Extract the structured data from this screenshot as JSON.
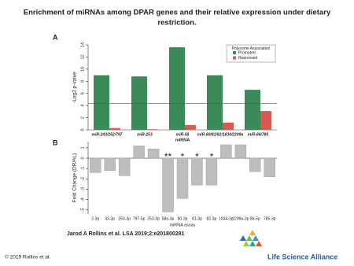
{
  "title_lines": [
    "Enrichment of miRNAs among DPAR genes and their relative expression under dietary",
    "restriction."
  ],
  "citation": "Jarod A Rollins et al. LSA 2019;2:e201800281",
  "copyright": "© 2019 Rollins et al.",
  "logo_text": "Life Science Alliance",
  "chart_data": [
    {
      "type": "bar",
      "panel": "A",
      "x_label": "miRNA",
      "y_label": "-Log2 p-value",
      "categories": [
        "miR-243/252/797",
        "miR-253",
        "miR-58",
        "miR-80/81/82/1834/2209a",
        "miR-86/785"
      ],
      "series": [
        {
          "name": "Promoted",
          "color": "#3a8a5a",
          "values": [
            9,
            8.8,
            13.6,
            9,
            6.6
          ]
        },
        {
          "name": "Repressed",
          "color": "#d65a55",
          "values": [
            0.3,
            0.1,
            0.8,
            1.2,
            3.1
          ]
        }
      ],
      "legend_title": "Polysome Association",
      "legend": "top-right",
      "reference_line": 4.32,
      "ylim": [
        0,
        14
      ],
      "yticks": [
        0,
        2,
        4,
        6,
        8,
        10,
        12,
        14
      ]
    },
    {
      "type": "bar",
      "panel": "B",
      "x_label": "miRNA assay",
      "y_label": "Fold Change (DR/AL)",
      "categories": [
        "2-3p",
        "43-3p",
        "250-3p",
        "797-5p",
        "253-3p",
        "58a-3p",
        "80-3p",
        "81-3p",
        "82-3p",
        "1834-3p",
        "2209a-3p",
        "86-5p",
        "785-3p"
      ],
      "values": [
        -1.4,
        -1.2,
        -1.7,
        1.2,
        0.9,
        -5.2,
        -3.9,
        -2.6,
        -2.6,
        1.3,
        1.3,
        -1.3,
        -1.8
      ],
      "color": "#bdbdbd",
      "annotations": [
        {
          "text": "**",
          "category": "58a-3p"
        },
        {
          "text": "*",
          "category": "80-3p"
        },
        {
          "text": "*",
          "category": "81-3p"
        },
        {
          "text": "*",
          "category": "82-3p"
        }
      ],
      "ylim": [
        -5.4,
        1.6
      ],
      "yticks": [
        -5,
        -4,
        -3,
        -2,
        -1,
        0,
        1
      ]
    }
  ]
}
